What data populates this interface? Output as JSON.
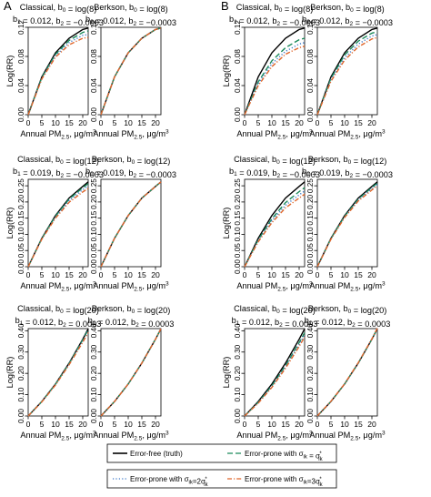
{
  "panel_letters": [
    "A",
    "B"
  ],
  "colors": {
    "truth": "#000000",
    "sigma1": "#1b8a5a",
    "sigma2": "#3a78c9",
    "sigma3": "#e0662a"
  },
  "legend": {
    "items": [
      {
        "series": "truth",
        "label": "Error-free (truth)",
        "dash": "solid"
      },
      {
        "series": "sigma1",
        "label": "Error-prone with σik = σ*ik",
        "dash": "long"
      },
      {
        "series": "sigma2",
        "label": "Error-prone with σik=2σ*ik",
        "dash": "dotted"
      },
      {
        "series": "sigma3",
        "label": "Error-prone with σik=3σ*ik",
        "dash": "dashdot"
      }
    ]
  },
  "chart_data": [
    {
      "type": "line",
      "panel": "A",
      "title": "Classical, b0 = log(8)",
      "subtitle": "b1 = 0.012, b2 = −0.0003",
      "xlabel": "Annual PM2.5, μg/m3",
      "ylabel": "Log(RR)",
      "xlim": [
        0,
        22
      ],
      "ylim": [
        0,
        0.12
      ],
      "x_ticks": [
        0,
        5,
        10,
        15,
        20
      ],
      "y_ticks": [
        0.0,
        0.04,
        0.08,
        0.12
      ],
      "x": [
        0,
        5,
        10,
        15,
        20,
        22
      ],
      "series": [
        {
          "key": "truth",
          "values": [
            0,
            0.052,
            0.085,
            0.105,
            0.117,
            0.119
          ]
        },
        {
          "key": "sigma1",
          "values": [
            0,
            0.051,
            0.083,
            0.102,
            0.113,
            0.115
          ]
        },
        {
          "key": "sigma2",
          "values": [
            0,
            0.05,
            0.081,
            0.099,
            0.109,
            0.11
          ]
        },
        {
          "key": "sigma3",
          "values": [
            0,
            0.049,
            0.079,
            0.096,
            0.105,
            0.106
          ]
        }
      ]
    },
    {
      "type": "line",
      "panel": "A",
      "title": "Berkson, b0 = log(8)",
      "subtitle": "b1 = 0.012, b2 = −0.0003",
      "xlabel": "Annual PM2.5, μg/m3",
      "ylabel": "Log(RR)",
      "xlim": [
        0,
        22
      ],
      "ylim": [
        0,
        0.12
      ],
      "x_ticks": [
        0,
        5,
        10,
        15,
        20
      ],
      "y_ticks": [
        0.0,
        0.04,
        0.08,
        0.12
      ],
      "x": [
        0,
        5,
        10,
        15,
        20,
        22
      ],
      "series": [
        {
          "key": "truth",
          "values": [
            0,
            0.052,
            0.085,
            0.105,
            0.117,
            0.119
          ]
        },
        {
          "key": "sigma1",
          "values": [
            0,
            0.052,
            0.085,
            0.105,
            0.117,
            0.119
          ]
        },
        {
          "key": "sigma2",
          "values": [
            0,
            0.052,
            0.085,
            0.105,
            0.117,
            0.119
          ]
        },
        {
          "key": "sigma3",
          "values": [
            0,
            0.052,
            0.085,
            0.105,
            0.117,
            0.119
          ]
        }
      ]
    },
    {
      "type": "line",
      "panel": "B",
      "title": "Classical, b0 = log(8)",
      "subtitle": "b1 = 0.012, b2 = −0.0003",
      "xlabel": "Annual PM2.5, μg/m3",
      "ylabel": "Log(RR)",
      "xlim": [
        0,
        22
      ],
      "ylim": [
        0,
        0.12
      ],
      "x_ticks": [
        0,
        5,
        10,
        15,
        20
      ],
      "y_ticks": [
        0.0,
        0.04,
        0.08,
        0.12
      ],
      "x": [
        0,
        5,
        10,
        15,
        20,
        22
      ],
      "series": [
        {
          "key": "truth",
          "values": [
            0,
            0.052,
            0.085,
            0.105,
            0.117,
            0.119
          ]
        },
        {
          "key": "sigma1",
          "values": [
            0,
            0.045,
            0.074,
            0.092,
            0.103,
            0.105
          ]
        },
        {
          "key": "sigma2",
          "values": [
            0,
            0.043,
            0.07,
            0.087,
            0.097,
            0.099
          ]
        },
        {
          "key": "sigma3",
          "values": [
            0,
            0.04,
            0.066,
            0.083,
            0.092,
            0.094
          ]
        }
      ]
    },
    {
      "type": "line",
      "panel": "B",
      "title": "Berkson, b0 = log(8)",
      "subtitle": "b1 = 0.012, b2 = −0.0003",
      "xlabel": "Annual PM2.5, μg/m3",
      "ylabel": "Log(RR)",
      "xlim": [
        0,
        22
      ],
      "ylim": [
        0,
        0.12
      ],
      "x_ticks": [
        0,
        5,
        10,
        15,
        20
      ],
      "y_ticks": [
        0.0,
        0.04,
        0.08,
        0.12
      ],
      "x": [
        0,
        5,
        10,
        15,
        20,
        22
      ],
      "series": [
        {
          "key": "truth",
          "values": [
            0,
            0.052,
            0.085,
            0.105,
            0.117,
            0.119
          ]
        },
        {
          "key": "sigma1",
          "values": [
            0,
            0.05,
            0.082,
            0.101,
            0.112,
            0.114
          ]
        },
        {
          "key": "sigma2",
          "values": [
            0,
            0.048,
            0.078,
            0.097,
            0.108,
            0.11
          ]
        },
        {
          "key": "sigma3",
          "values": [
            0,
            0.046,
            0.075,
            0.093,
            0.104,
            0.106
          ]
        }
      ]
    },
    {
      "type": "line",
      "panel": "A",
      "title": "Classical, b0 = log(12)",
      "subtitle": "b1 = 0.019, b2 = −0.0003",
      "xlabel": "Annual PM2.5, μg/m3",
      "ylabel": "Log(RR)",
      "xlim": [
        0,
        22
      ],
      "ylim": [
        0,
        0.27
      ],
      "x_ticks": [
        0,
        5,
        10,
        15,
        20
      ],
      "y_ticks": [
        0.0,
        0.05,
        0.1,
        0.15,
        0.2,
        0.25
      ],
      "x": [
        0,
        5,
        10,
        15,
        20,
        22
      ],
      "series": [
        {
          "key": "truth",
          "values": [
            0,
            0.088,
            0.158,
            0.212,
            0.248,
            0.262
          ]
        },
        {
          "key": "sigma1",
          "values": [
            0,
            0.087,
            0.156,
            0.209,
            0.244,
            0.257
          ]
        },
        {
          "key": "sigma2",
          "values": [
            0,
            0.086,
            0.153,
            0.204,
            0.238,
            0.25
          ]
        },
        {
          "key": "sigma3",
          "values": [
            0,
            0.085,
            0.15,
            0.199,
            0.231,
            0.242
          ]
        }
      ]
    },
    {
      "type": "line",
      "panel": "A",
      "title": "Berkson, b0 = log(12)",
      "subtitle": "b1 = 0.019, b2 = −0.0003",
      "xlabel": "Annual PM2.5, μg/m3",
      "ylabel": "Log(RR)",
      "xlim": [
        0,
        22
      ],
      "ylim": [
        0,
        0.27
      ],
      "x_ticks": [
        0,
        5,
        10,
        15,
        20
      ],
      "y_ticks": [
        0.0,
        0.05,
        0.1,
        0.15,
        0.2,
        0.25
      ],
      "x": [
        0,
        5,
        10,
        15,
        20,
        22
      ],
      "series": [
        {
          "key": "truth",
          "values": [
            0,
            0.088,
            0.158,
            0.212,
            0.248,
            0.262
          ]
        },
        {
          "key": "sigma1",
          "values": [
            0,
            0.088,
            0.158,
            0.212,
            0.248,
            0.262
          ]
        },
        {
          "key": "sigma2",
          "values": [
            0,
            0.088,
            0.158,
            0.212,
            0.248,
            0.262
          ]
        },
        {
          "key": "sigma3",
          "values": [
            0,
            0.088,
            0.158,
            0.212,
            0.248,
            0.262
          ]
        }
      ]
    },
    {
      "type": "line",
      "panel": "B",
      "title": "Classical, b0 = log(12)",
      "subtitle": "b1 = 0.019, b2 = −0.0003",
      "xlabel": "Annual PM2.5, μg/m3",
      "ylabel": "Log(RR)",
      "xlim": [
        0,
        22
      ],
      "ylim": [
        0,
        0.27
      ],
      "x_ticks": [
        0,
        5,
        10,
        15,
        20
      ],
      "y_ticks": [
        0.0,
        0.05,
        0.1,
        0.15,
        0.2,
        0.25
      ],
      "x": [
        0,
        5,
        10,
        15,
        20,
        22
      ],
      "series": [
        {
          "key": "truth",
          "values": [
            0,
            0.088,
            0.158,
            0.212,
            0.248,
            0.262
          ]
        },
        {
          "key": "sigma1",
          "values": [
            0,
            0.083,
            0.148,
            0.198,
            0.232,
            0.244
          ]
        },
        {
          "key": "sigma2",
          "values": [
            0,
            0.08,
            0.142,
            0.19,
            0.222,
            0.234
          ]
        },
        {
          "key": "sigma3",
          "values": [
            0,
            0.077,
            0.136,
            0.182,
            0.212,
            0.224
          ]
        }
      ]
    },
    {
      "type": "line",
      "panel": "B",
      "title": "Berkson, b0 = log(12)",
      "subtitle": "b1 = 0.019, b2 = −0.0003",
      "xlabel": "Annual PM2.5, μg/m3",
      "ylabel": "Log(RR)",
      "xlim": [
        0,
        22
      ],
      "ylim": [
        0,
        0.27
      ],
      "x_ticks": [
        0,
        5,
        10,
        15,
        20
      ],
      "y_ticks": [
        0.0,
        0.05,
        0.1,
        0.15,
        0.2,
        0.25
      ],
      "x": [
        0,
        5,
        10,
        15,
        20,
        22
      ],
      "series": [
        {
          "key": "truth",
          "values": [
            0,
            0.088,
            0.158,
            0.212,
            0.248,
            0.262
          ]
        },
        {
          "key": "sigma1",
          "values": [
            0,
            0.087,
            0.156,
            0.209,
            0.245,
            0.258
          ]
        },
        {
          "key": "sigma2",
          "values": [
            0,
            0.086,
            0.154,
            0.206,
            0.241,
            0.254
          ]
        },
        {
          "key": "sigma3",
          "values": [
            0,
            0.085,
            0.152,
            0.203,
            0.237,
            0.25
          ]
        }
      ]
    },
    {
      "type": "line",
      "panel": "A",
      "title": "Classical, b0 = log(20)",
      "subtitle": "b1 = 0.012, b2 = 0.0003",
      "xlabel": "Annual PM2.5, μg/m3",
      "ylabel": "Log(RR)",
      "xlim": [
        0,
        22
      ],
      "ylim": [
        0,
        0.41
      ],
      "x_ticks": [
        0,
        5,
        10,
        15,
        20
      ],
      "y_ticks": [
        0.0,
        0.1,
        0.2,
        0.3,
        0.4
      ],
      "x": [
        0,
        5,
        10,
        15,
        20,
        22
      ],
      "series": [
        {
          "key": "truth",
          "values": [
            0,
            0.068,
            0.15,
            0.248,
            0.36,
            0.409
          ]
        },
        {
          "key": "sigma1",
          "values": [
            0,
            0.068,
            0.149,
            0.246,
            0.357,
            0.405
          ]
        },
        {
          "key": "sigma2",
          "values": [
            0,
            0.067,
            0.147,
            0.243,
            0.352,
            0.399
          ]
        },
        {
          "key": "sigma3",
          "values": [
            0,
            0.066,
            0.145,
            0.24,
            0.346,
            0.392
          ]
        }
      ]
    },
    {
      "type": "line",
      "panel": "A",
      "title": "Berkson, b0 = log(20)",
      "subtitle": "b1 = 0.012, b2 = 0.0003",
      "xlabel": "Annual PM2.5, μg/m3",
      "ylabel": "Log(RR)",
      "xlim": [
        0,
        22
      ],
      "ylim": [
        0,
        0.41
      ],
      "x_ticks": [
        0,
        5,
        10,
        15,
        20
      ],
      "y_ticks": [
        0.0,
        0.1,
        0.2,
        0.3,
        0.4
      ],
      "x": [
        0,
        5,
        10,
        15,
        20,
        22
      ],
      "series": [
        {
          "key": "truth",
          "values": [
            0,
            0.068,
            0.15,
            0.248,
            0.36,
            0.409
          ]
        },
        {
          "key": "sigma1",
          "values": [
            0,
            0.068,
            0.15,
            0.248,
            0.36,
            0.409
          ]
        },
        {
          "key": "sigma2",
          "values": [
            0,
            0.068,
            0.15,
            0.248,
            0.36,
            0.409
          ]
        },
        {
          "key": "sigma3",
          "values": [
            0,
            0.068,
            0.15,
            0.248,
            0.36,
            0.409
          ]
        }
      ]
    },
    {
      "type": "line",
      "panel": "B",
      "title": "Classical, b0 = log(20)",
      "subtitle": "b1 = 0.012, b2 = 0.0003",
      "xlabel": "Annual PM2.5, μg/m3",
      "ylabel": "Log(RR)",
      "xlim": [
        0,
        22
      ],
      "ylim": [
        0,
        0.41
      ],
      "x_ticks": [
        0,
        5,
        10,
        15,
        20
      ],
      "y_ticks": [
        0.0,
        0.1,
        0.2,
        0.3,
        0.4
      ],
      "x": [
        0,
        5,
        10,
        15,
        20,
        22
      ],
      "series": [
        {
          "key": "truth",
          "values": [
            0,
            0.068,
            0.15,
            0.248,
            0.36,
            0.409
          ]
        },
        {
          "key": "sigma1",
          "values": [
            0,
            0.064,
            0.142,
            0.236,
            0.344,
            0.391
          ]
        },
        {
          "key": "sigma2",
          "values": [
            0,
            0.062,
            0.138,
            0.23,
            0.335,
            0.381
          ]
        },
        {
          "key": "sigma3",
          "values": [
            0,
            0.06,
            0.134,
            0.224,
            0.326,
            0.371
          ]
        }
      ]
    },
    {
      "type": "line",
      "panel": "B",
      "title": "Berkson, b0 = log(20)",
      "subtitle": "b1 = 0.012, b2 = 0.0003",
      "xlabel": "Annual PM2.5, μg/m3",
      "ylabel": "Log(RR)",
      "xlim": [
        0,
        22
      ],
      "ylim": [
        0,
        0.41
      ],
      "x_ticks": [
        0,
        5,
        10,
        15,
        20
      ],
      "y_ticks": [
        0.0,
        0.1,
        0.2,
        0.3,
        0.4
      ],
      "x": [
        0,
        5,
        10,
        15,
        20,
        22
      ],
      "series": [
        {
          "key": "truth",
          "values": [
            0,
            0.068,
            0.15,
            0.248,
            0.36,
            0.409
          ]
        },
        {
          "key": "sigma1",
          "values": [
            0,
            0.068,
            0.15,
            0.248,
            0.36,
            0.41
          ]
        },
        {
          "key": "sigma2",
          "values": [
            0,
            0.068,
            0.151,
            0.249,
            0.361,
            0.411
          ]
        },
        {
          "key": "sigma3",
          "values": [
            0,
            0.069,
            0.151,
            0.25,
            0.362,
            0.412
          ]
        }
      ]
    }
  ]
}
